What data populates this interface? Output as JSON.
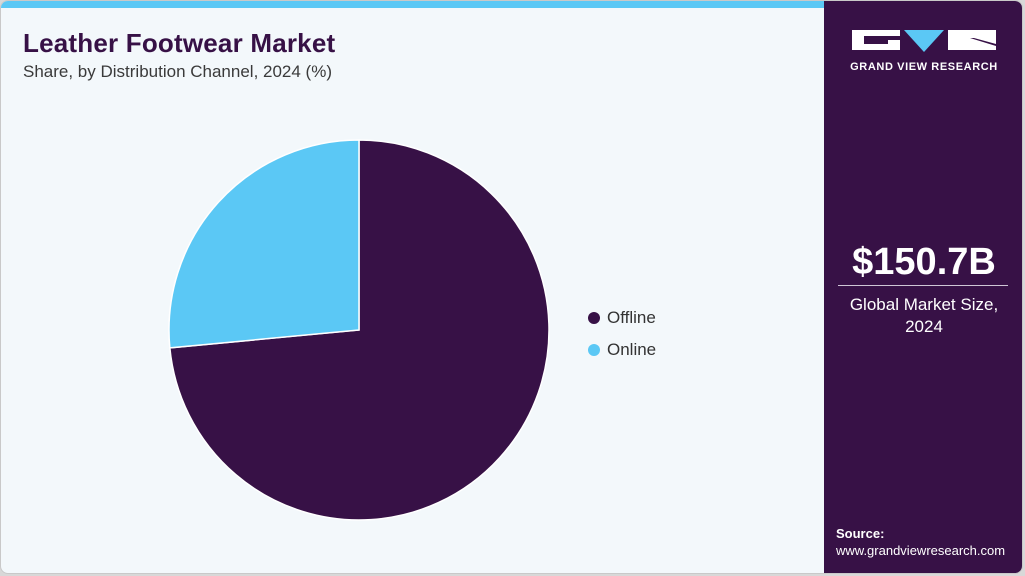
{
  "header": {
    "title": "Leather Footwear Market",
    "subtitle": "Share, by Distribution Channel, 2024 (%)"
  },
  "colors": {
    "offline": "#371146",
    "online": "#5bc8f5",
    "accent_bar": "#5bc8f5",
    "sidebar_bg": "#371146"
  },
  "legend": {
    "items": [
      {
        "label": "Offline",
        "color": "#371146"
      },
      {
        "label": "Online",
        "color": "#5bc8f5"
      }
    ]
  },
  "sidebar": {
    "logo_text": "GRAND VIEW RESEARCH",
    "market_value": "$150.7B",
    "market_label_line1": "Global Market Size,",
    "market_label_line2": "2024",
    "source_label": "Source:",
    "source_url": "www.grandviewresearch.com"
  },
  "chart_data": {
    "type": "pie",
    "title": "Leather Footwear Market",
    "subtitle": "Share, by Distribution Channel, 2024 (%)",
    "categories": [
      "Offline",
      "Online"
    ],
    "values": [
      73.5,
      26.5
    ],
    "colors": [
      "#371146",
      "#5bc8f5"
    ],
    "start_angle": "12 o'clock, Offline clockwise",
    "legend_position": "right",
    "data_labels": false
  }
}
